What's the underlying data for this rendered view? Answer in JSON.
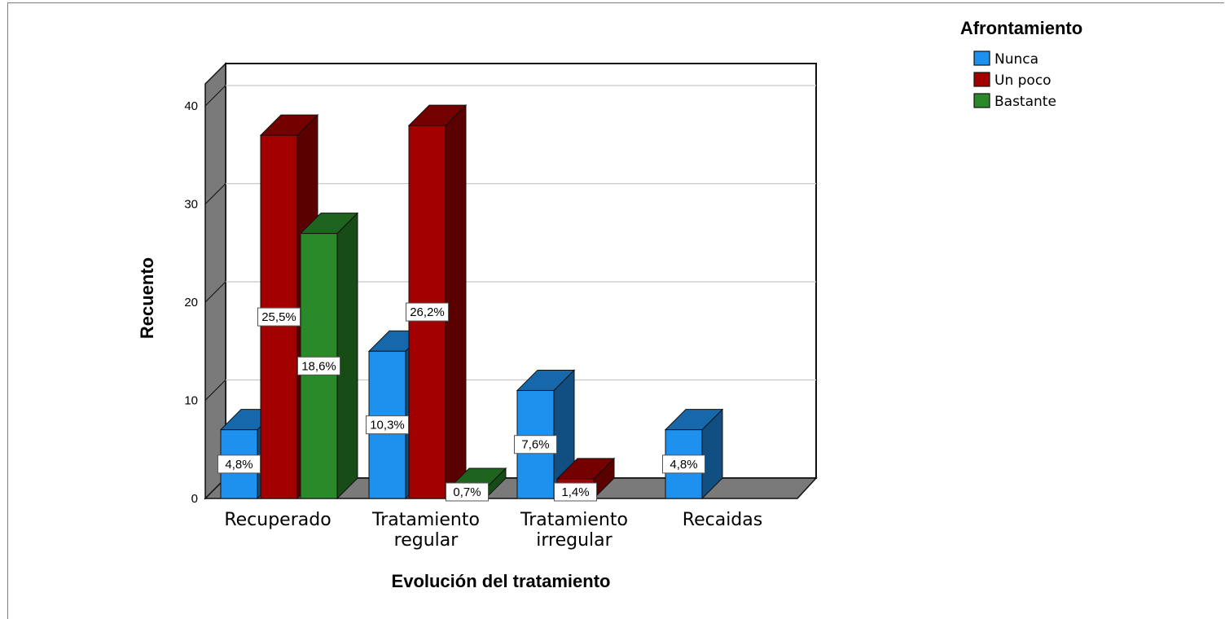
{
  "chart_data": {
    "type": "bar",
    "style": "3d-clustered",
    "xlabel": "Evolución del tratamiento",
    "ylabel": "Recuento",
    "ylim": [
      0,
      40
    ],
    "yticks": [
      "0",
      "10",
      "20",
      "30",
      "40"
    ],
    "grid": true,
    "categories": [
      [
        "Recuperado"
      ],
      [
        "Tratamiento",
        "regular"
      ],
      [
        "Tratamiento",
        "irregular"
      ],
      [
        "Recaidas"
      ]
    ],
    "legend": {
      "title": "Afrontamiento",
      "position": "top-right"
    },
    "series": [
      {
        "name": "Nunca",
        "color": "#1e90ee",
        "values": [
          7,
          15,
          11,
          7
        ],
        "labels": [
          "4,8%",
          "10,3%",
          "7,6%",
          "4,8%"
        ]
      },
      {
        "name": "Un poco",
        "color": "#a30000",
        "values": [
          37,
          38,
          2,
          0
        ],
        "labels": [
          "25,5%",
          "26,2%",
          "1,4%",
          ""
        ]
      },
      {
        "name": "Bastante",
        "color": "#2a8a2a",
        "values": [
          27,
          1,
          0,
          0
        ],
        "labels": [
          "18,6%",
          "0,7%",
          "",
          ""
        ]
      }
    ]
  }
}
